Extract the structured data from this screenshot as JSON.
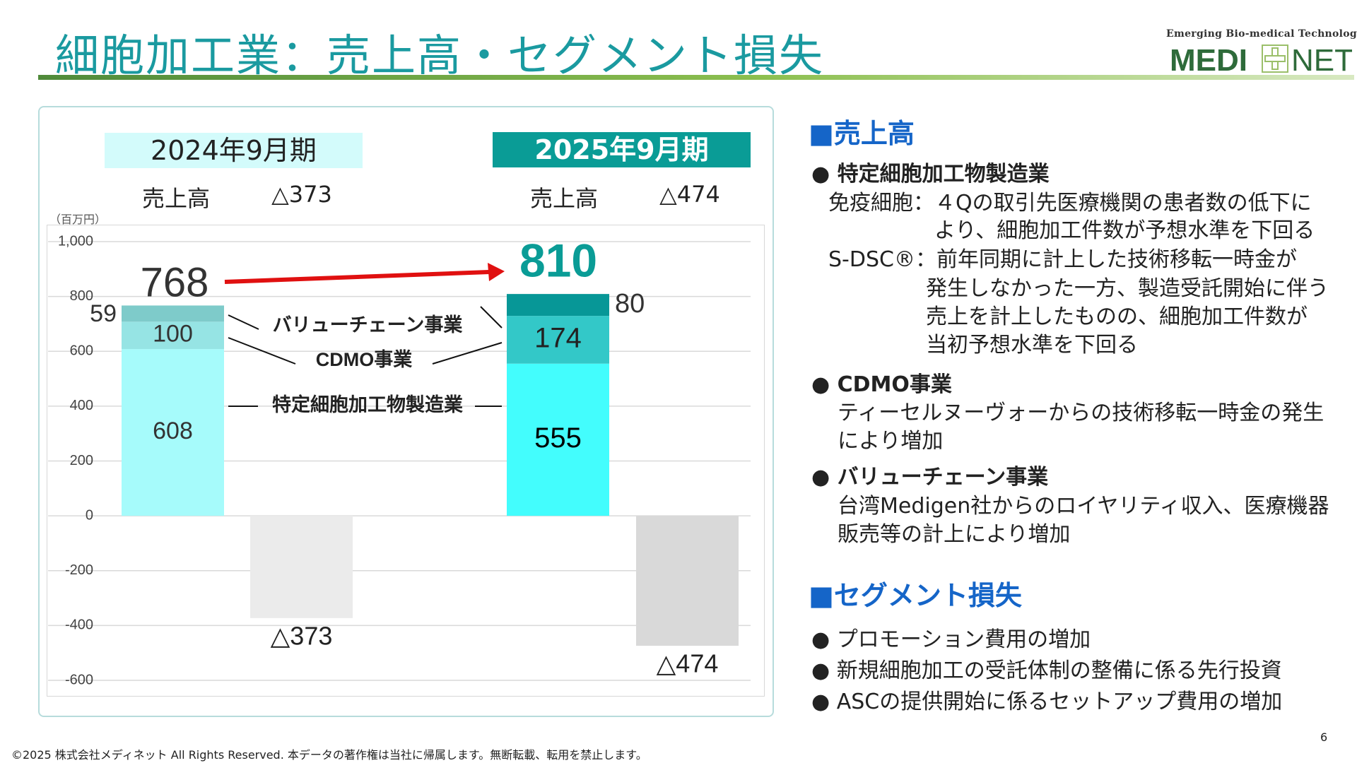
{
  "header": {
    "title": "細胞加工業：売上高・セグメント損失",
    "tagline": "Emerging Bio-medical Technology",
    "logo_left": "MEDI",
    "logo_right": "NET"
  },
  "colors": {
    "title": "#1a9aa0",
    "accent": "#0a9c96",
    "heading_blue": "#1565c8",
    "arrow": "#e01010"
  },
  "chart_data": {
    "type": "bar",
    "stacked": true,
    "unit": "（百万円）",
    "ylim": [
      -600,
      1000
    ],
    "yticks": [
      1000,
      800,
      600,
      400,
      200,
      0,
      -200,
      -400,
      -600
    ],
    "ytick_labels": [
      "1,000",
      "800",
      "600",
      "400",
      "200",
      "0",
      "-200",
      "-400",
      "-600"
    ],
    "grid": true,
    "periods": [
      {
        "label": "2024年9月期",
        "sales_label": "売上高",
        "loss_label": "△373",
        "total": 768,
        "total_label": "768",
        "segments": [
          {
            "name": "特定細胞加工物製造業",
            "value": 608,
            "label": "608",
            "color": "#a6fbfb"
          },
          {
            "name": "CDMO事業",
            "value": 100,
            "label": "100",
            "color": "#96e4e4"
          },
          {
            "name": "バリューチェーン事業",
            "value": 59,
            "label": "59",
            "color": "#7ecbca"
          }
        ],
        "loss": -373,
        "loss_color": "#ebebeb"
      },
      {
        "label": "2025年9月期",
        "sales_label": "売上高",
        "loss_label": "△474",
        "total": 810,
        "total_label": "810",
        "segments": [
          {
            "name": "特定細胞加工物製造業",
            "value": 555,
            "label": "555",
            "color": "#43fdfd"
          },
          {
            "name": "CDMO事業",
            "value": 174,
            "label": "174",
            "color": "#33c8c8"
          },
          {
            "name": "バリューチェーン事業",
            "value": 80,
            "label": "80",
            "color": "#079797"
          }
        ],
        "loss": -474,
        "loss_color": "#d9d9d9"
      }
    ],
    "segment_names": [
      "バリューチェーン事業",
      "CDMO事業",
      "特定細胞加工物製造業"
    ]
  },
  "right": {
    "sales_heading": "■売上高",
    "b1_title": "● 特定細胞加工物製造業",
    "b1_l1": "免疫細胞：４Qの取引先医療機関の患者数の低下に",
    "b1_l2": "より、細胞加工件数が予想水準を下回る",
    "b1_l3": "S-DSC®：前年同期に計上した技術移転一時金が",
    "b1_l4": "発生しなかった一方、製造受託開始に伴う",
    "b1_l5": "売上を計上したものの、細胞加工件数が",
    "b1_l6": "当初予想水準を下回る",
    "b2_title": "● CDMO事業",
    "b2_l1": "ティーセルヌーヴォーからの技術移転一時金の発生",
    "b2_l2": "により増加",
    "b3_title": "● バリューチェーン事業",
    "b3_l1": "台湾Medigen社からのロイヤリティ収入、医療機器",
    "b3_l2": "販売等の計上により増加",
    "loss_heading": "■セグメント損失",
    "l1": "● プロモーション費用の増加",
    "l2": "● 新規細胞加工の受託体制の整備に係る先行投資",
    "l3": "● ASCの提供開始に係るセットアップ費用の増加"
  },
  "footer": {
    "copyright": "©2025 株式会社メディネット  All Rights Reserved.  本データの著作権は当社に帰属します。無断転載、転用を禁止します。",
    "page": "6"
  }
}
